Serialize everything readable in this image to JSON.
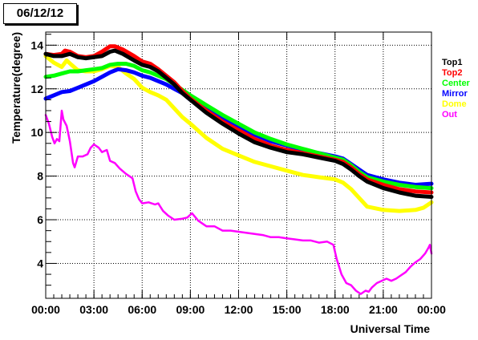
{
  "title": "06/12/12",
  "legend": [
    {
      "label": "Top1",
      "color": "#000000"
    },
    {
      "label": "Top2",
      "color": "#ff0000"
    },
    {
      "label": "Center",
      "color": "#00ff00"
    },
    {
      "label": "Mirror",
      "color": "#0000ff"
    },
    {
      "label": "Dome",
      "color": "#ffff00"
    },
    {
      "label": "Out",
      "color": "#ff00ff"
    }
  ],
  "chart_data": {
    "type": "line",
    "title": "06/12/12",
    "xlabel": "Universal Time",
    "ylabel": "Temperature(degree)",
    "xlim": [
      0,
      24
    ],
    "ylim": [
      2.4,
      14.6
    ],
    "x_tick_labels": [
      "00:00",
      "03:00",
      "06:00",
      "09:00",
      "12:00",
      "15:00",
      "18:00",
      "21:00",
      "00:00"
    ],
    "x_ticks": [
      0,
      3,
      6,
      9,
      12,
      15,
      18,
      21,
      24
    ],
    "y_ticks": [
      4,
      6,
      8,
      10,
      12,
      14
    ],
    "grid": true,
    "legend_position": "right",
    "series": [
      {
        "name": "Top1",
        "color": "#000000",
        "width": 5,
        "points": [
          [
            0,
            13.6
          ],
          [
            0.5,
            13.5
          ],
          [
            1,
            13.5
          ],
          [
            1.5,
            13.6
          ],
          [
            2,
            13.45
          ],
          [
            2.5,
            13.4
          ],
          [
            3,
            13.45
          ],
          [
            3.5,
            13.5
          ],
          [
            4,
            13.7
          ],
          [
            4.3,
            13.75
          ],
          [
            4.8,
            13.6
          ],
          [
            5.5,
            13.3
          ],
          [
            6,
            13.1
          ],
          [
            6.5,
            13.0
          ],
          [
            7,
            12.8
          ],
          [
            7.5,
            12.5
          ],
          [
            8,
            12.2
          ],
          [
            8.5,
            11.8
          ],
          [
            9,
            11.5
          ],
          [
            10,
            10.9
          ],
          [
            11,
            10.4
          ],
          [
            12,
            9.95
          ],
          [
            13,
            9.55
          ],
          [
            14,
            9.3
          ],
          [
            15,
            9.1
          ],
          [
            16,
            9.0
          ],
          [
            17,
            8.85
          ],
          [
            18,
            8.7
          ],
          [
            18.5,
            8.55
          ],
          [
            19,
            8.3
          ],
          [
            19.5,
            8.0
          ],
          [
            20,
            7.75
          ],
          [
            21,
            7.45
          ],
          [
            22,
            7.25
          ],
          [
            23,
            7.1
          ],
          [
            24,
            7.05
          ]
        ]
      },
      {
        "name": "Top2",
        "color": "#ff0000",
        "width": 5,
        "points": [
          [
            0,
            13.6
          ],
          [
            0.5,
            13.55
          ],
          [
            1,
            13.6
          ],
          [
            1.2,
            13.75
          ],
          [
            1.5,
            13.7
          ],
          [
            2,
            13.5
          ],
          [
            2.5,
            13.45
          ],
          [
            3,
            13.5
          ],
          [
            3.5,
            13.7
          ],
          [
            4,
            13.95
          ],
          [
            4.3,
            13.95
          ],
          [
            4.8,
            13.8
          ],
          [
            5.5,
            13.5
          ],
          [
            6,
            13.25
          ],
          [
            6.5,
            13.15
          ],
          [
            7,
            12.9
          ],
          [
            7.5,
            12.6
          ],
          [
            8,
            12.3
          ],
          [
            8.5,
            11.9
          ],
          [
            9,
            11.55
          ],
          [
            10,
            11.0
          ],
          [
            11,
            10.5
          ],
          [
            12,
            10.1
          ],
          [
            13,
            9.7
          ],
          [
            14,
            9.4
          ],
          [
            15,
            9.2
          ],
          [
            16,
            9.05
          ],
          [
            17,
            8.9
          ],
          [
            18,
            8.75
          ],
          [
            18.5,
            8.65
          ],
          [
            19,
            8.4
          ],
          [
            19.5,
            8.1
          ],
          [
            20,
            7.85
          ],
          [
            21,
            7.6
          ],
          [
            22,
            7.4
          ],
          [
            23,
            7.3
          ],
          [
            24,
            7.25
          ]
        ]
      },
      {
        "name": "Center",
        "color": "#00ff00",
        "width": 5,
        "points": [
          [
            0,
            12.55
          ],
          [
            0.5,
            12.6
          ],
          [
            1,
            12.7
          ],
          [
            1.5,
            12.8
          ],
          [
            2,
            12.8
          ],
          [
            2.5,
            12.85
          ],
          [
            3,
            12.9
          ],
          [
            3.5,
            12.95
          ],
          [
            4,
            13.1
          ],
          [
            4.5,
            13.15
          ],
          [
            5,
            13.15
          ],
          [
            5.5,
            13.05
          ],
          [
            6,
            12.85
          ],
          [
            6.5,
            12.75
          ],
          [
            7,
            12.6
          ],
          [
            7.5,
            12.45
          ],
          [
            8,
            12.2
          ],
          [
            8.5,
            11.95
          ],
          [
            9,
            11.7
          ],
          [
            10,
            11.25
          ],
          [
            11,
            10.8
          ],
          [
            12,
            10.4
          ],
          [
            13,
            10.0
          ],
          [
            14,
            9.7
          ],
          [
            15,
            9.45
          ],
          [
            16,
            9.25
          ],
          [
            17,
            9.05
          ],
          [
            18,
            8.85
          ],
          [
            18.5,
            8.75
          ],
          [
            19,
            8.5
          ],
          [
            19.5,
            8.2
          ],
          [
            20,
            7.95
          ],
          [
            21,
            7.75
          ],
          [
            22,
            7.6
          ],
          [
            23,
            7.5
          ],
          [
            24,
            7.45
          ]
        ]
      },
      {
        "name": "Mirror",
        "color": "#0000ff",
        "width": 5,
        "points": [
          [
            0,
            11.55
          ],
          [
            0.5,
            11.7
          ],
          [
            1,
            11.85
          ],
          [
            1.5,
            11.9
          ],
          [
            2,
            12.05
          ],
          [
            2.5,
            12.2
          ],
          [
            3,
            12.35
          ],
          [
            3.5,
            12.55
          ],
          [
            4,
            12.75
          ],
          [
            4.5,
            12.9
          ],
          [
            5,
            12.85
          ],
          [
            5.5,
            12.75
          ],
          [
            6,
            12.6
          ],
          [
            6.5,
            12.5
          ],
          [
            7,
            12.35
          ],
          [
            7.5,
            12.2
          ],
          [
            8,
            12.0
          ],
          [
            8.5,
            11.8
          ],
          [
            9,
            11.5
          ],
          [
            10,
            11.05
          ],
          [
            11,
            10.65
          ],
          [
            12,
            10.25
          ],
          [
            13,
            9.9
          ],
          [
            14,
            9.6
          ],
          [
            15,
            9.4
          ],
          [
            16,
            9.2
          ],
          [
            17,
            9.05
          ],
          [
            18,
            8.9
          ],
          [
            18.5,
            8.8
          ],
          [
            19,
            8.55
          ],
          [
            19.5,
            8.3
          ],
          [
            20,
            8.05
          ],
          [
            21,
            7.85
          ],
          [
            22,
            7.7
          ],
          [
            23,
            7.6
          ],
          [
            24,
            7.65
          ]
        ]
      },
      {
        "name": "Dome",
        "color": "#ffff00",
        "width": 5,
        "points": [
          [
            0,
            13.5
          ],
          [
            0.5,
            13.2
          ],
          [
            1,
            13.0
          ],
          [
            1.3,
            13.3
          ],
          [
            1.6,
            13.1
          ],
          [
            2,
            12.85
          ],
          [
            2.5,
            12.8
          ],
          [
            3,
            12.8
          ],
          [
            3.5,
            12.9
          ],
          [
            4,
            13.05
          ],
          [
            4.5,
            13.0
          ],
          [
            5,
            12.7
          ],
          [
            5.5,
            12.45
          ],
          [
            6,
            12.05
          ],
          [
            6.5,
            11.85
          ],
          [
            7,
            11.7
          ],
          [
            7.5,
            11.5
          ],
          [
            8,
            11.1
          ],
          [
            8.5,
            10.7
          ],
          [
            9,
            10.4
          ],
          [
            10,
            9.75
          ],
          [
            11,
            9.25
          ],
          [
            12,
            8.95
          ],
          [
            13,
            8.65
          ],
          [
            14,
            8.45
          ],
          [
            15,
            8.25
          ],
          [
            16,
            8.05
          ],
          [
            17,
            7.95
          ],
          [
            18,
            7.85
          ],
          [
            18.5,
            7.7
          ],
          [
            19,
            7.4
          ],
          [
            19.5,
            7.0
          ],
          [
            20,
            6.6
          ],
          [
            21,
            6.45
          ],
          [
            22,
            6.4
          ],
          [
            23,
            6.45
          ],
          [
            23.5,
            6.55
          ],
          [
            24,
            6.8
          ]
        ]
      },
      {
        "name": "Out",
        "color": "#ff00ff",
        "width": 2.5,
        "points": [
          [
            0,
            10.8
          ],
          [
            0.2,
            10.4
          ],
          [
            0.4,
            9.8
          ],
          [
            0.55,
            9.5
          ],
          [
            0.7,
            9.7
          ],
          [
            0.85,
            9.6
          ],
          [
            1.0,
            11.0
          ],
          [
            1.1,
            10.6
          ],
          [
            1.3,
            10.3
          ],
          [
            1.5,
            9.6
          ],
          [
            1.7,
            8.6
          ],
          [
            1.8,
            8.4
          ],
          [
            2.0,
            8.9
          ],
          [
            2.3,
            8.9
          ],
          [
            2.6,
            9.0
          ],
          [
            2.8,
            9.3
          ],
          [
            3.0,
            9.45
          ],
          [
            3.3,
            9.3
          ],
          [
            3.5,
            9.1
          ],
          [
            3.8,
            9.2
          ],
          [
            4.0,
            8.7
          ],
          [
            4.3,
            8.6
          ],
          [
            4.6,
            8.35
          ],
          [
            5.0,
            8.1
          ],
          [
            5.4,
            7.9
          ],
          [
            5.6,
            7.3
          ],
          [
            5.8,
            6.95
          ],
          [
            6.0,
            6.75
          ],
          [
            6.4,
            6.8
          ],
          [
            6.8,
            6.7
          ],
          [
            7.0,
            6.75
          ],
          [
            7.3,
            6.4
          ],
          [
            7.6,
            6.2
          ],
          [
            8.0,
            6.0
          ],
          [
            8.5,
            6.05
          ],
          [
            8.8,
            6.1
          ],
          [
            9.1,
            6.3
          ],
          [
            9.5,
            5.95
          ],
          [
            10.0,
            5.7
          ],
          [
            10.5,
            5.7
          ],
          [
            11.0,
            5.5
          ],
          [
            11.5,
            5.5
          ],
          [
            12.0,
            5.45
          ],
          [
            12.5,
            5.4
          ],
          [
            13.0,
            5.35
          ],
          [
            13.5,
            5.3
          ],
          [
            14.0,
            5.2
          ],
          [
            14.5,
            5.2
          ],
          [
            15.0,
            5.15
          ],
          [
            15.5,
            5.1
          ],
          [
            16.0,
            5.05
          ],
          [
            16.5,
            5.05
          ],
          [
            17.0,
            4.95
          ],
          [
            17.5,
            5.0
          ],
          [
            17.9,
            4.85
          ],
          [
            18.1,
            4.2
          ],
          [
            18.4,
            3.5
          ],
          [
            18.7,
            3.1
          ],
          [
            19.0,
            3.0
          ],
          [
            19.3,
            2.75
          ],
          [
            19.6,
            2.6
          ],
          [
            19.9,
            2.75
          ],
          [
            20.1,
            2.7
          ],
          [
            20.3,
            2.9
          ],
          [
            20.6,
            3.1
          ],
          [
            20.9,
            3.2
          ],
          [
            21.2,
            3.3
          ],
          [
            21.5,
            3.2
          ],
          [
            21.8,
            3.3
          ],
          [
            22.1,
            3.45
          ],
          [
            22.4,
            3.6
          ],
          [
            22.7,
            3.85
          ],
          [
            23.0,
            4.05
          ],
          [
            23.3,
            4.2
          ],
          [
            23.6,
            4.45
          ],
          [
            23.8,
            4.7
          ],
          [
            23.9,
            4.85
          ],
          [
            24.0,
            4.45
          ]
        ]
      }
    ]
  }
}
